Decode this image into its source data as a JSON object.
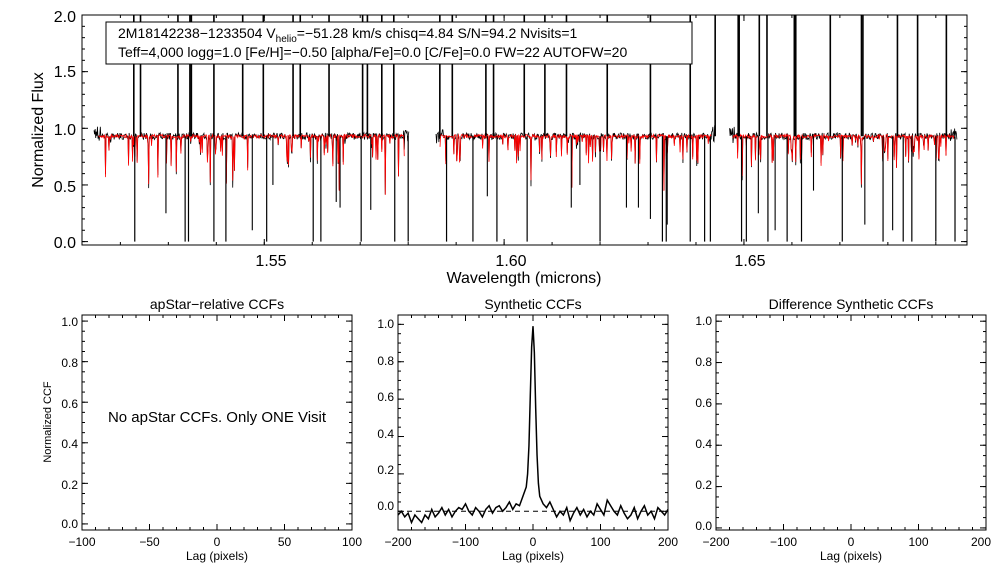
{
  "colors": {
    "observed": "#000000",
    "model": "#ff0000",
    "axis": "#000000",
    "zero_line": "#000000"
  },
  "chart_data": [
    {
      "id": "spectrum",
      "type": "line",
      "title": "",
      "xlabel": "Wavelength (microns)",
      "ylabel": "Normalized Flux",
      "xlim": [
        1.512,
        1.6965
      ],
      "ylim": [
        -0.03,
        2.0
      ],
      "xticks": [
        1.55,
        1.6,
        1.65
      ],
      "xtick_labels": [
        "1.55",
        "1.60",
        "1.65"
      ],
      "yticks": [
        0.0,
        0.5,
        1.0,
        1.5,
        2.0
      ],
      "ytick_labels": [
        "0.0",
        "0.5",
        "1.0",
        "1.5",
        "2.0"
      ],
      "info_box": {
        "line1_a": "2M18142238−1233504  V",
        "line1_sub": "helio",
        "line1_b": "=−51.28 km/s  chisq=4.84  S/N=94.2  Nvisits=1",
        "line2": "Teff=4,000 logg=1.0 [Fe/H]=−0.50 [alpha/Fe]=0.0 [C/Fe]=0.0 FW=22 AUTOFW=20"
      },
      "chips": [
        [
          1.5145,
          1.5802
        ],
        [
          1.5858,
          1.644
        ],
        [
          1.647,
          1.6945
        ]
      ],
      "continuum": 0.93,
      "series": [
        {
          "name": "observed spectrum",
          "color": "#000000"
        },
        {
          "name": "synthetic model",
          "color": "#ff0000"
        }
      ],
      "spikes_to_top": [
        1.5228,
        1.5242,
        1.532,
        1.5345,
        1.5348,
        1.5395,
        1.5455,
        1.5498,
        1.556,
        1.5575,
        1.5635,
        1.5705,
        1.5715,
        1.5745,
        1.577,
        1.5866,
        1.5892,
        1.5962,
        1.5978,
        1.6042,
        1.6085,
        1.613,
        1.6215,
        1.6305,
        1.6388,
        1.644,
        1.6488,
        1.649,
        1.6532,
        1.6548,
        1.6605,
        1.6608,
        1.668,
        1.6745,
        1.6748,
        1.682,
        1.6862,
        1.6922
      ],
      "drops_to_zero": [
        1.523,
        1.5335,
        1.5342,
        1.5395,
        1.542,
        1.5505,
        1.5602,
        1.5618,
        1.5702,
        1.5772,
        1.58,
        1.588,
        1.5935,
        1.5985,
        1.6048,
        1.62,
        1.633,
        1.6338,
        1.6388,
        1.6418,
        1.643,
        1.6495,
        1.6505,
        1.655,
        1.659,
        1.662,
        1.6705,
        1.679,
        1.6832,
        1.685,
        1.69,
        1.694
      ],
      "partial_drops": [
        [
          1.5295,
          0.25
        ],
        [
          1.5475,
          0.1
        ],
        [
          1.5518,
          0.5
        ],
        [
          1.565,
          0.35
        ],
        [
          1.5658,
          0.3
        ],
        [
          1.5722,
          0.28
        ],
        [
          1.5965,
          0.4
        ],
        [
          1.614,
          0.3
        ],
        [
          1.6158,
          0.5
        ],
        [
          1.6255,
          0.3
        ],
        [
          1.628,
          0.3
        ],
        [
          1.6305,
          0.2
        ],
        [
          1.634,
          0.15
        ],
        [
          1.653,
          0.25
        ],
        [
          1.6565,
          0.1
        ],
        [
          1.6645,
          0.45
        ],
        [
          1.6752,
          0.15
        ],
        [
          1.681,
          0.1
        ]
      ]
    },
    {
      "id": "apstar-ccf",
      "type": "line",
      "title": "apStar−relative CCFs",
      "xlabel": "Lag (pixels)",
      "ylabel": "Normalized CCF",
      "xlim": [
        -100,
        100
      ],
      "ylim": [
        -0.03,
        1.03
      ],
      "xticks": [
        -100,
        -50,
        0,
        50,
        100
      ],
      "xtick_labels": [
        "−100",
        "−50",
        "0",
        "50",
        "100"
      ],
      "yticks": [
        0.0,
        0.2,
        0.4,
        0.6,
        0.8,
        1.0
      ],
      "ytick_labels": [
        "0.0",
        "0.2",
        "0.4",
        "0.6",
        "0.8",
        "1.0"
      ],
      "message": "No apStar CCFs.  Only ONE Visit",
      "series": []
    },
    {
      "id": "synthetic-ccf",
      "type": "line",
      "title": "Synthetic CCFs",
      "xlabel": "Lag (pixels)",
      "ylabel": "",
      "xlim": [
        -200,
        200
      ],
      "ylim": [
        -0.1,
        1.05
      ],
      "xticks": [
        -200,
        -100,
        0,
        100,
        200
      ],
      "xtick_labels": [
        "−200",
        "−100",
        "0",
        "100",
        "200"
      ],
      "yticks": [
        0.0,
        0.2,
        0.4,
        0.6,
        0.8,
        1.0
      ],
      "ytick_labels": [
        "0.0",
        "0.2",
        "0.4",
        "0.6",
        "0.8",
        "1.0"
      ],
      "zero_line": 0.0,
      "series": [
        {
          "name": "Synthetic CCF",
          "x": [
            -200,
            -195,
            -190,
            -185,
            -180,
            -175,
            -170,
            -165,
            -160,
            -155,
            -150,
            -145,
            -140,
            -135,
            -130,
            -125,
            -120,
            -115,
            -110,
            -105,
            -100,
            -95,
            -90,
            -85,
            -80,
            -75,
            -70,
            -65,
            -60,
            -55,
            -50,
            -45,
            -40,
            -35,
            -30,
            -25,
            -20,
            -15,
            -10,
            -8,
            -6,
            -4,
            -2,
            0,
            2,
            4,
            6,
            8,
            10,
            15,
            20,
            25,
            30,
            35,
            40,
            45,
            50,
            55,
            60,
            65,
            70,
            75,
            80,
            85,
            90,
            95,
            100,
            105,
            110,
            115,
            120,
            125,
            130,
            135,
            140,
            145,
            150,
            155,
            160,
            165,
            170,
            175,
            180,
            185,
            190,
            195,
            200
          ],
          "y": [
            -0.02,
            0.0,
            -0.03,
            -0.01,
            -0.06,
            -0.02,
            -0.04,
            -0.06,
            -0.02,
            -0.04,
            0.01,
            -0.03,
            -0.01,
            0.02,
            -0.02,
            0.01,
            -0.03,
            0.0,
            0.02,
            0.01,
            0.04,
            0.0,
            -0.02,
            0.02,
            0.0,
            -0.03,
            0.01,
            0.03,
            -0.01,
            0.02,
            0.03,
            0.0,
            0.02,
            0.05,
            0.01,
            0.04,
            0.03,
            0.08,
            0.13,
            0.2,
            0.35,
            0.62,
            0.88,
            0.99,
            0.85,
            0.55,
            0.3,
            0.15,
            0.08,
            0.04,
            0.02,
            0.05,
            0.01,
            -0.03,
            0.0,
            -0.02,
            0.02,
            -0.05,
            -0.01,
            0.02,
            -0.02,
            0.01,
            -0.03,
            0.0,
            -0.02,
            0.04,
            0.01,
            -0.02,
            0.06,
            0.03,
            0.0,
            -0.02,
            0.03,
            -0.01,
            -0.04,
            -0.02,
            0.02,
            -0.04,
            0.0,
            0.03,
            -0.02,
            0.0,
            -0.04,
            0.02,
            0.0,
            -0.02,
            0.01
          ]
        }
      ]
    },
    {
      "id": "difference-ccf",
      "type": "line",
      "title": "Difference Synthetic CCFs",
      "xlabel": "Lag (pixels)",
      "ylabel": "",
      "xlim": [
        -200,
        200
      ],
      "ylim": [
        -0.01,
        1.03
      ],
      "xticks": [
        -200,
        -100,
        0,
        100,
        200
      ],
      "xtick_labels": [
        "−200",
        "−100",
        "0",
        "100",
        "200"
      ],
      "yticks": [
        0.0,
        0.2,
        0.4,
        0.6,
        0.8,
        1.0
      ],
      "ytick_labels": [
        "0.0",
        "0.2",
        "0.4",
        "0.6",
        "0.8",
        "1.0"
      ],
      "series": []
    }
  ]
}
